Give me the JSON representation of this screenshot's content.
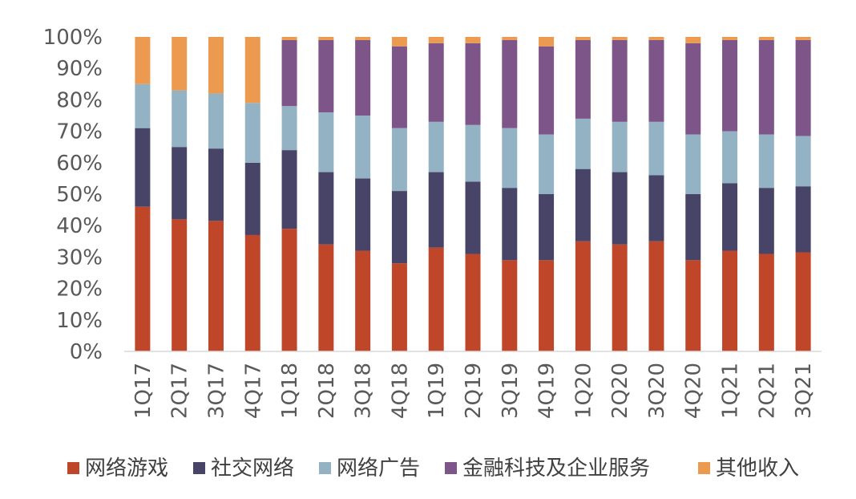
{
  "chart_data": {
    "type": "bar",
    "stacked": true,
    "percent": true,
    "title": "",
    "xlabel": "",
    "ylabel": "",
    "ylim": [
      0,
      100
    ],
    "yticks": [
      "0%",
      "10%",
      "20%",
      "30%",
      "40%",
      "50%",
      "60%",
      "70%",
      "80%",
      "90%",
      "100%"
    ],
    "categories": [
      "1Q17",
      "2Q17",
      "3Q17",
      "4Q17",
      "1Q18",
      "2Q18",
      "3Q18",
      "4Q18",
      "1Q19",
      "2Q19",
      "3Q19",
      "4Q19",
      "1Q20",
      "2Q20",
      "3Q20",
      "4Q20",
      "1Q21",
      "2Q21",
      "3Q21"
    ],
    "series": [
      {
        "name": "网络游戏",
        "color": "#C0462A",
        "values": [
          46,
          42,
          41.5,
          37,
          39,
          34,
          32,
          28,
          33,
          31,
          29,
          29,
          35,
          34,
          35,
          29,
          32,
          31,
          31.5
        ]
      },
      {
        "name": "社交网络",
        "color": "#474468",
        "values": [
          25,
          23,
          23,
          23,
          25,
          23,
          23,
          23,
          24,
          23,
          23,
          21,
          23,
          23,
          21,
          21,
          21.5,
          21,
          21
        ]
      },
      {
        "name": "网络广告",
        "color": "#93B3C4",
        "values": [
          14,
          18,
          17.5,
          19,
          14,
          19,
          20,
          20,
          16,
          18,
          19,
          19,
          16,
          16,
          17,
          19,
          16.5,
          17,
          16
        ]
      },
      {
        "name": "金融科技及企业服务",
        "color": "#7D5588",
        "values": [
          0,
          0,
          0,
          0,
          21,
          23,
          24,
          26,
          25,
          26,
          28,
          28,
          25,
          26,
          26,
          29,
          29,
          30,
          30.5
        ]
      },
      {
        "name": "其他收入",
        "color": "#EC9A4F",
        "values": [
          15,
          17,
          18,
          21,
          1,
          1,
          1,
          3,
          2,
          2,
          1,
          3,
          1,
          1,
          1,
          2,
          1,
          1,
          1
        ]
      }
    ],
    "legend": "bottom",
    "grid": false
  }
}
